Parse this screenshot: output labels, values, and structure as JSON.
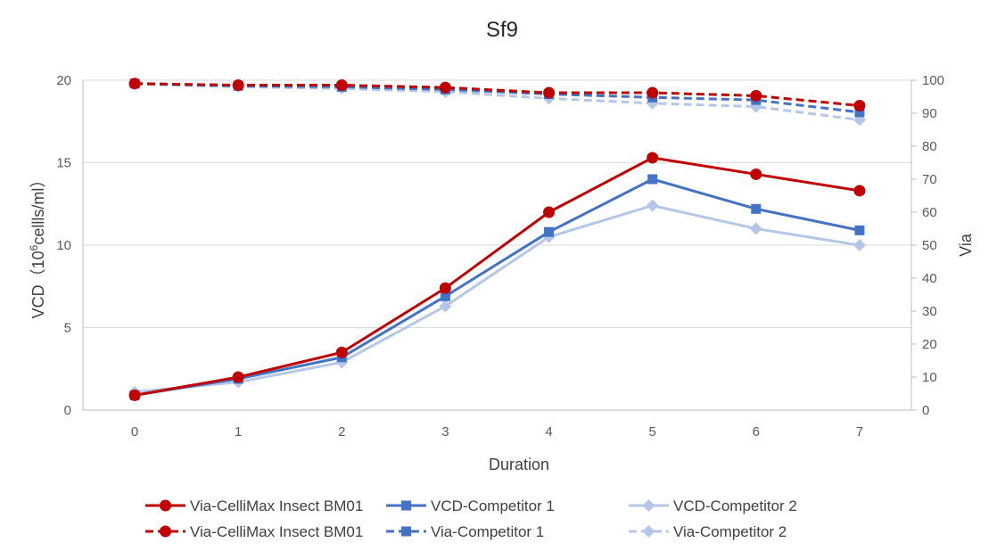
{
  "chart_data": {
    "type": "line",
    "title": "Sf9",
    "xlabel": "Duration",
    "ylabel_left_prefix": "VCD（10",
    "ylabel_left_sup": "6",
    "ylabel_left_suffix": "cellls/ml）",
    "ylabel_right": "Via",
    "x": [
      0,
      1,
      2,
      3,
      4,
      5,
      6,
      7
    ],
    "ylim_left": [
      0,
      20
    ],
    "yticks_left": [
      0,
      5,
      10,
      15,
      20
    ],
    "ylim_right": [
      0,
      100
    ],
    "yticks_right": [
      0,
      10,
      20,
      30,
      40,
      50,
      60,
      70,
      80,
      90,
      100
    ],
    "grid": true,
    "legend_position": "bottom",
    "series": [
      {
        "name": "Via-CelliMax Insect BM01",
        "axis": "left",
        "style": "solid",
        "marker": "circle",
        "color": "#C00000",
        "values": [
          0.9,
          2.0,
          3.5,
          7.4,
          12.0,
          15.3,
          14.3,
          13.3
        ]
      },
      {
        "name": "VCD-Competitor 1",
        "axis": "left",
        "style": "solid",
        "marker": "square",
        "color": "#4472C4",
        "values": [
          0.9,
          1.9,
          3.2,
          6.9,
          10.8,
          14.0,
          12.2,
          10.9
        ]
      },
      {
        "name": "VCD-Competitor 2",
        "axis": "left",
        "style": "solid",
        "marker": "diamond",
        "color": "#B4C7E7",
        "values": [
          1.1,
          1.7,
          2.9,
          6.3,
          10.5,
          12.4,
          11.0,
          10.0
        ]
      },
      {
        "name": "Via-CelliMax Insect BM01",
        "axis": "right",
        "style": "dashed",
        "marker": "circle",
        "color": "#C00000",
        "values": [
          99,
          98.5,
          98.5,
          97.8,
          96.2,
          96.2,
          95.3,
          92.3
        ]
      },
      {
        "name": "Via-Competitor 1",
        "axis": "right",
        "style": "dashed",
        "marker": "square",
        "color": "#4472C4",
        "values": [
          99,
          98.3,
          98,
          97.2,
          95.8,
          94.8,
          94,
          90.3
        ]
      },
      {
        "name": "Via-Competitor 2",
        "axis": "right",
        "style": "dashed",
        "marker": "diamond",
        "color": "#B4C7E7",
        "values": [
          98.8,
          98,
          97.5,
          96.5,
          94.5,
          93,
          92,
          88
        ]
      }
    ]
  }
}
